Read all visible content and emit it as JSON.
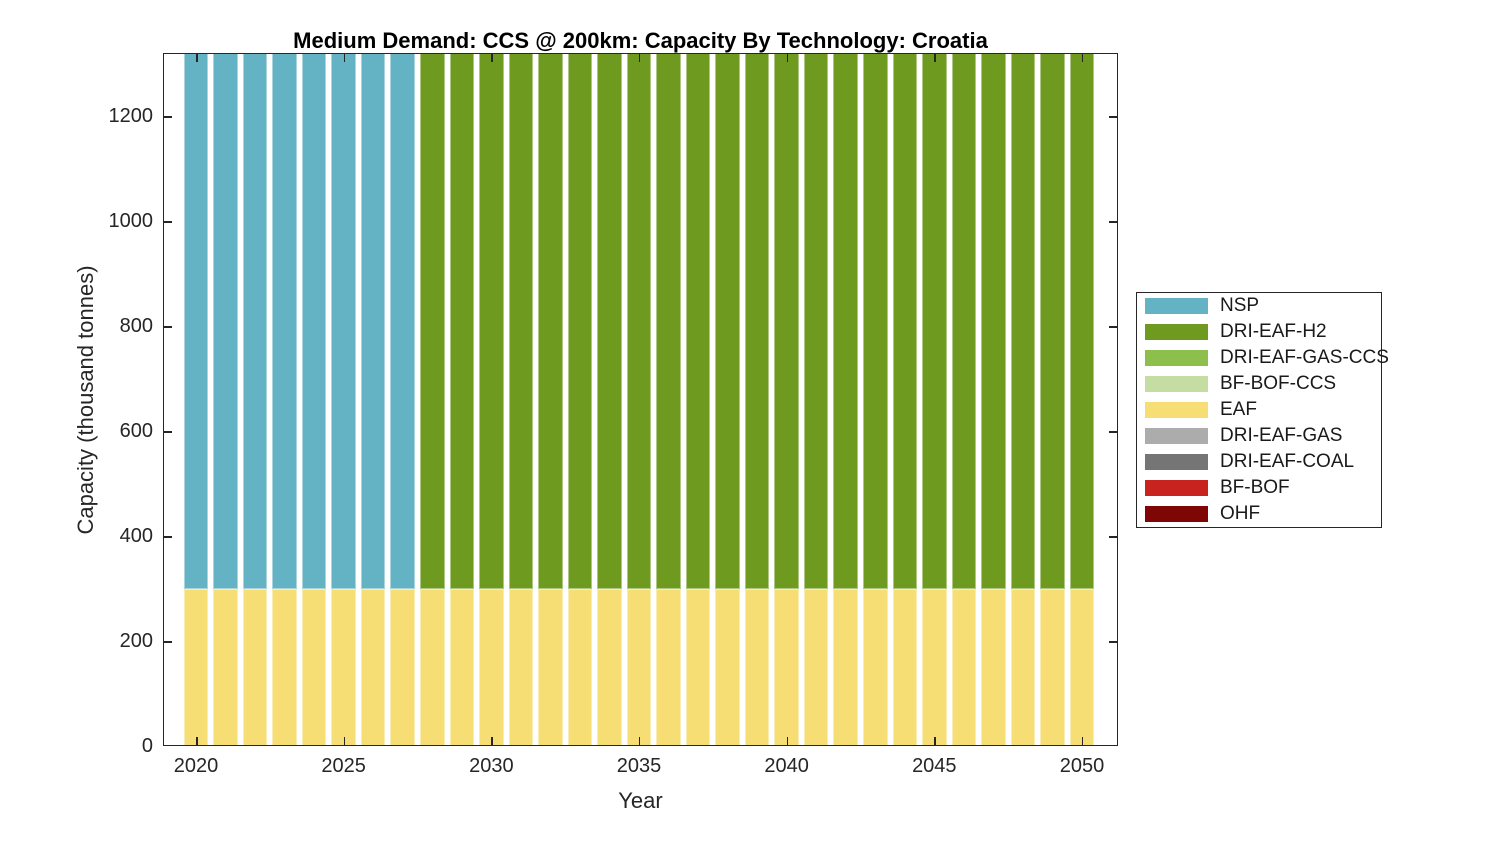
{
  "chart_data": {
    "type": "bar",
    "stacked": true,
    "title": "Medium Demand: CCS @ 200km: Capacity By Technology: Croatia",
    "xlabel": "Year",
    "ylabel": "Capacity (thousand tonnes)",
    "x": [
      2020,
      2021,
      2022,
      2023,
      2024,
      2025,
      2026,
      2027,
      2028,
      2029,
      2030,
      2031,
      2032,
      2033,
      2034,
      2035,
      2036,
      2037,
      2038,
      2039,
      2040,
      2041,
      2042,
      2043,
      2044,
      2045,
      2046,
      2047,
      2048,
      2049,
      2050
    ],
    "xticks": [
      2020,
      2025,
      2030,
      2035,
      2040,
      2045,
      2050
    ],
    "yticks": [
      0,
      200,
      400,
      600,
      800,
      1000,
      1200
    ],
    "ylim": [
      0,
      1320
    ],
    "grid": false,
    "legend_position": "right-outside",
    "bars_clipped_at_top": true,
    "clip_note": "NSP (2020-2027) and DRI-EAF-H2 (2028-2050) segments are clipped at the top of the axes; 1020 is the visible height above the EAF segment (true totals extend beyond ylim).",
    "series": [
      {
        "name": "EAF",
        "color": "#F6DE74",
        "values": [
          300,
          300,
          300,
          300,
          300,
          300,
          300,
          300,
          300,
          300,
          300,
          300,
          300,
          300,
          300,
          300,
          300,
          300,
          300,
          300,
          300,
          300,
          300,
          300,
          300,
          300,
          300,
          300,
          300,
          300,
          300
        ]
      },
      {
        "name": "NSP",
        "color": "#64B3C5",
        "values": [
          1020,
          1020,
          1020,
          1020,
          1020,
          1020,
          1020,
          1020,
          0,
          0,
          0,
          0,
          0,
          0,
          0,
          0,
          0,
          0,
          0,
          0,
          0,
          0,
          0,
          0,
          0,
          0,
          0,
          0,
          0,
          0,
          0
        ]
      },
      {
        "name": "DRI-EAF-H2",
        "color": "#6E9A1F",
        "values": [
          0,
          0,
          0,
          0,
          0,
          0,
          0,
          0,
          1020,
          1020,
          1020,
          1020,
          1020,
          1020,
          1020,
          1020,
          1020,
          1020,
          1020,
          1020,
          1020,
          1020,
          1020,
          1020,
          1020,
          1020,
          1020,
          1020,
          1020,
          1020,
          1020
        ]
      }
    ],
    "zero_series": [
      "DRI-EAF-GAS-CCS",
      "BF-BOF-CCS",
      "DRI-EAF-GAS",
      "DRI-EAF-COAL",
      "BF-BOF",
      "OHF"
    ]
  },
  "legend": {
    "items": [
      {
        "label": "NSP",
        "color": "#64B3C5"
      },
      {
        "label": "DRI-EAF-H2",
        "color": "#6E9A1F"
      },
      {
        "label": "DRI-EAF-GAS-CCS",
        "color": "#8DBF4C"
      },
      {
        "label": "BF-BOF-CCS",
        "color": "#C5DDA3"
      },
      {
        "label": "EAF",
        "color": "#F6DE74"
      },
      {
        "label": "DRI-EAF-GAS",
        "color": "#ACACAC"
      },
      {
        "label": "DRI-EAF-COAL",
        "color": "#757575"
      },
      {
        "label": "BF-BOF",
        "color": "#C9231F"
      },
      {
        "label": "OHF",
        "color": "#7E0605"
      }
    ]
  },
  "axes": {
    "line_color": "#262626",
    "text_color": "#262626",
    "background": "#ffffff"
  }
}
